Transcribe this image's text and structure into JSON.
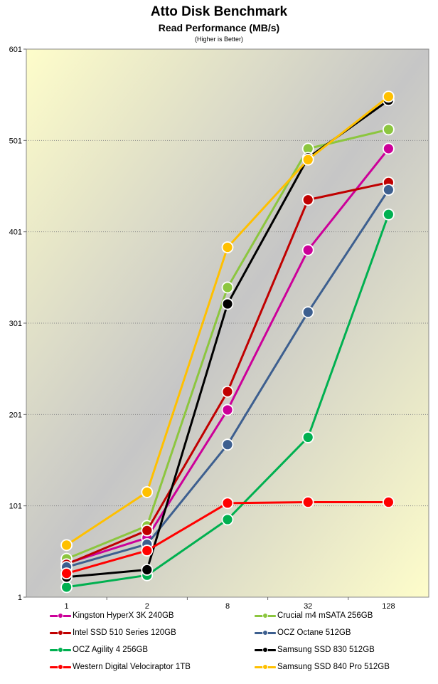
{
  "chart_data": {
    "type": "line",
    "title": "Atto Disk Benchmark",
    "subtitle": "Read Performance (MB/s)",
    "note": "(Higher is Better)",
    "categories": [
      "1",
      "2",
      "8",
      "32",
      "128"
    ],
    "ylim": [
      1,
      601
    ],
    "yticks": [
      "1",
      "101",
      "201",
      "301",
      "401",
      "501",
      "601"
    ],
    "grid": true,
    "legend_position": "bottom",
    "series": [
      {
        "name": "Kingston HyperX 3K 240GB",
        "color": "#cc0099",
        "values": [
          38,
          66,
          206,
          381,
          492
        ]
      },
      {
        "name": "Crucial m4 mSATA 256GB",
        "color": "#8cc63f",
        "values": [
          43,
          79,
          340,
          492,
          513
        ]
      },
      {
        "name": "Intel SSD 510 Series 120GB",
        "color": "#c00000",
        "values": [
          37,
          74,
          226,
          436,
          455
        ]
      },
      {
        "name": "OCZ Octane 512GB",
        "color": "#3d5f8f",
        "values": [
          34,
          59,
          168,
          313,
          447
        ]
      },
      {
        "name": "OCZ Agility 4 256GB",
        "color": "#00b050",
        "values": [
          12,
          25,
          86,
          176,
          420
        ]
      },
      {
        "name": "Samsung SSD 830 512GB",
        "color": "#000000",
        "values": [
          23,
          31,
          322,
          482,
          545
        ]
      },
      {
        "name": "Western Digital Velociraptor 1TB",
        "color": "#ff0000",
        "values": [
          27,
          52,
          104,
          105,
          105
        ]
      },
      {
        "name": "Samsung SSD 840 Pro 512GB",
        "color": "#ffc000",
        "values": [
          58,
          116,
          384,
          480,
          549
        ]
      }
    ]
  }
}
